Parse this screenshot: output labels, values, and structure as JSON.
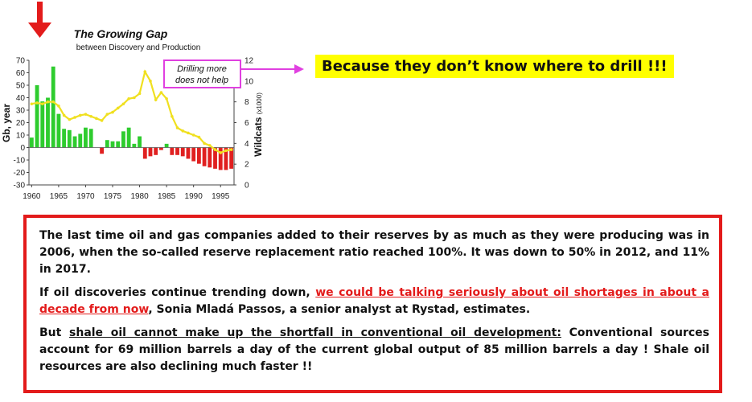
{
  "chart_data": {
    "type": "bar+line",
    "title": "The Growing Gap",
    "subtitle": "between Discovery and Production",
    "ylabel": "Gb, year",
    "y2label": "Wildcats",
    "y2label_unit": "(x1000)",
    "ylim": [
      -30,
      70
    ],
    "y2lim": [
      0,
      12
    ],
    "yticks": [
      "-30",
      "-20",
      "-10",
      "0",
      "10",
      "20",
      "30",
      "40",
      "50",
      "60",
      "70"
    ],
    "y2ticks": [
      "0",
      "2",
      "4",
      "6",
      "8",
      "10",
      "12"
    ],
    "xticks": [
      "1960",
      "1965",
      "1970",
      "1975",
      "1980",
      "1985",
      "1990",
      "1995"
    ],
    "x": [
      1960,
      1961,
      1962,
      1963,
      1964,
      1965,
      1966,
      1967,
      1968,
      1969,
      1970,
      1971,
      1972,
      1973,
      1974,
      1975,
      1976,
      1977,
      1978,
      1979,
      1980,
      1981,
      1982,
      1983,
      1984,
      1985,
      1986,
      1987,
      1988,
      1989,
      1990,
      1991,
      1992,
      1993,
      1994,
      1995,
      1996,
      1997
    ],
    "gap_values": [
      8,
      50,
      37,
      40,
      65,
      27,
      15,
      14,
      9,
      11,
      16,
      15,
      0,
      -5,
      6,
      5,
      5,
      13,
      16,
      3,
      9,
      -9,
      -7,
      -6,
      -2,
      3,
      -6,
      -6,
      -7,
      -9,
      -11,
      -13,
      -15,
      -16,
      -17,
      -18,
      -18,
      -17
    ],
    "wildcats": [
      7.8,
      7.9,
      7.8,
      8.0,
      8.0,
      7.6,
      6.7,
      6.3,
      6.5,
      6.7,
      6.8,
      6.6,
      6.4,
      6.2,
      6.8,
      7.0,
      7.4,
      7.8,
      8.3,
      8.4,
      8.8,
      10.9,
      10.0,
      8.2,
      8.9,
      8.3,
      6.6,
      5.5,
      5.2,
      5.0,
      4.8,
      4.6,
      4.0,
      3.8,
      3.4,
      3.1,
      3.3,
      3.4
    ],
    "colors": {
      "positive": "#2ecc2e",
      "negative": "#e02020",
      "line": "#f0e020",
      "arrow": "#e31b1b",
      "annotation_border": "#e040e0"
    },
    "annotation": {
      "line1": "Drilling more",
      "line2": "does not help"
    }
  },
  "callout": {
    "text": "Because they don’t know where to drill !!!"
  },
  "textbox": {
    "p1": "The last time oil and gas companies added to their reserves by as much as they were producing was in 2006, when the so-called reserve replacement ratio reached 100%. It was down to 50% in 2012, and 11% in 2017.",
    "p2_before": "If oil discoveries continue trending down, ",
    "p2_link": "we could be talking seriously about oil shortages in about a decade from now",
    "p2_after": ", Sonia Mladá Passos, a senior analyst at Rystad, estimates.",
    "p3_before": "But ",
    "p3_underlined": "shale oil cannot make up the shortfall in conventional oil development:",
    "p3_after": "  Conventional sources account for 69 million barrels a day of the current global output of 85 million barrels a day !   Shale oil resources are also declining much faster !!"
  }
}
